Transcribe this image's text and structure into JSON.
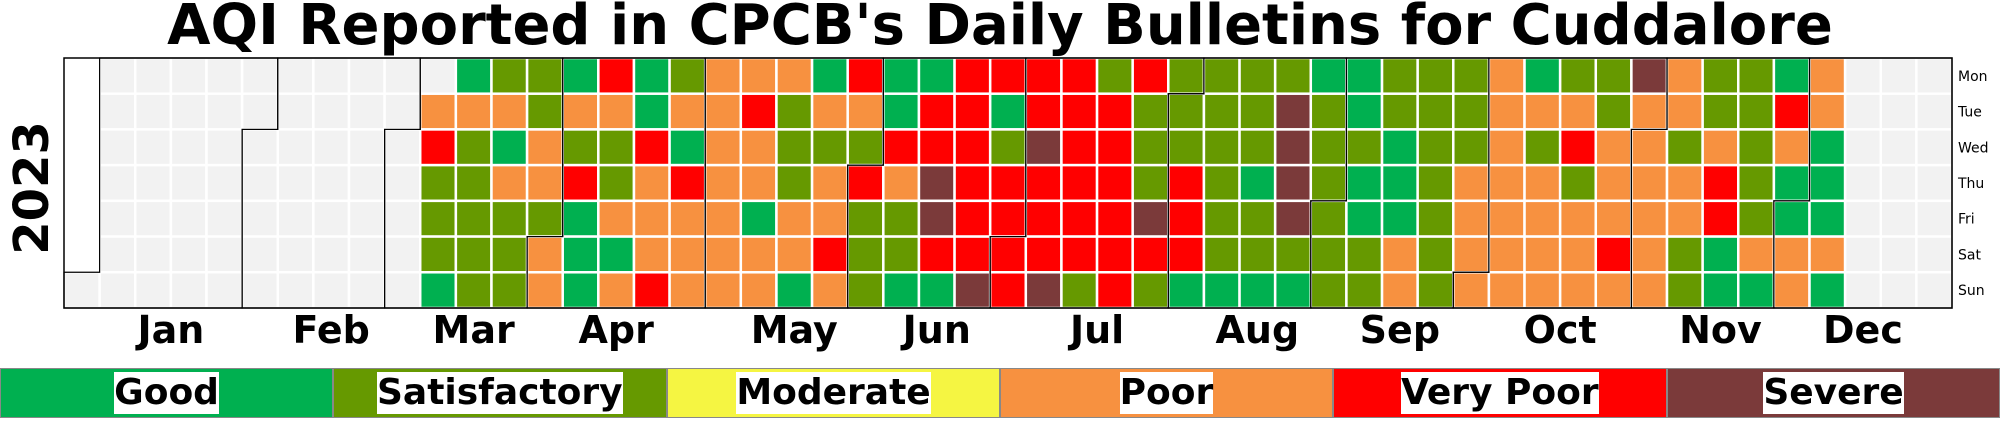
{
  "title": "AQI Reported in CPCB's Daily Bulletins for Cuddalore",
  "chart_data": {
    "type": "heatmap",
    "title": "AQI Reported in CPCB's Daily Bulletins for Cuddalore",
    "year_label": "2023",
    "year": 2023,
    "x_tick_labels": [
      "Jan",
      "Feb",
      "Mar",
      "Apr",
      "May",
      "Jun",
      "Jul",
      "Aug",
      "Sep",
      "Oct",
      "Nov",
      "Dec"
    ],
    "y_tick_labels": [
      "Mon",
      "Tue",
      "Wed",
      "Thu",
      "Fri",
      "Sat",
      "Sun"
    ],
    "category_colors": {
      "G": "#00b050",
      "S": "#669900",
      "M": "#f5f542",
      "P": "#f79140",
      "V": "#ff0000",
      "X": "#7b3a3a",
      "N": "#f2f2f2"
    },
    "week_columns_mon_to_sun": [
      "NNNNNNN",
      "NNNNNNN",
      "NNNNNNN",
      "NNNNNNN",
      "NNNNNNN",
      "NNNNNNN",
      "NNNNNNN",
      "NNNNNNN",
      "NNNNNNN",
      "NNNNNNN",
      "NPVSSSG",
      "GPSSSSS",
      "SPGPSSS",
      "SSPPSPP",
      "GPSVGGG",
      "VPSSPGP",
      "GGVPPPV",
      "SPGVPPP",
      "PPPPPPP",
      "PVPPGPP",
      "PSSSPPG",
      "GPSPPVP",
      "VPSVSSS",
      "GGVPSSG",
      "GVVXXVG",
      "VVVVVVX",
      "VGSVVVV",
      "VVXVVVX",
      "VVVVVVS",
      "SVVVVVV",
      "VSSSXVS",
      "SSSVVVG",
      "SSSSSSG",
      "SSSGSSG",
      "SXXXXSG",
      "GSSSSSS",
      "GGSGGSS",
      "SSGGGPP",
      "SSSSSSS",
      "SSSPPPP",
      "PPPPPPP",
      "GPSPPPP",
      "SPVSPPP",
      "SSPPPVP",
      "XPPPPPP",
      "PPSPPSS",
      "SSPVVGG",
      "SSSSSPG",
      "GVPGGPP",
      "PPGGGPG"
    ]
  },
  "legend": {
    "items": [
      {
        "key": "good",
        "label": "Good",
        "color": "#00b050"
      },
      {
        "key": "satisfactory",
        "label": "Satisfactory",
        "color": "#669900"
      },
      {
        "key": "moderate",
        "label": "Moderate",
        "color": "#f5f542"
      },
      {
        "key": "poor",
        "label": "Poor",
        "color": "#f79140"
      },
      {
        "key": "very-poor",
        "label": "Very Poor",
        "color": "#ff0000"
      },
      {
        "key": "severe",
        "label": "Severe",
        "color": "#7b3a3a"
      }
    ]
  }
}
